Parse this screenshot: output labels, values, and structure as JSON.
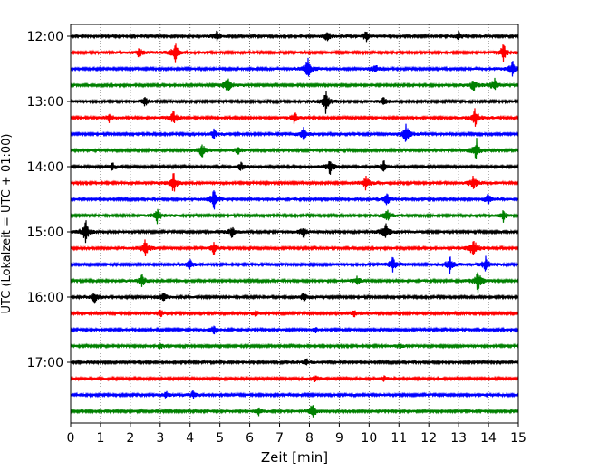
{
  "chart_data": {
    "type": "line",
    "title": "",
    "xlabel": "Zeit  [min]",
    "ylabel": "UTC (Lokalzeit = UTC + 01:00)",
    "xlim": [
      0,
      15
    ],
    "xticks": [
      0,
      1,
      2,
      3,
      4,
      5,
      6,
      7,
      8,
      9,
      10,
      11,
      12,
      13,
      14,
      15
    ],
    "yticks": [
      "12:00",
      "13:00",
      "14:00",
      "15:00",
      "16:00",
      "17:00"
    ],
    "grid": "vertical dotted",
    "trace_start": "12:00",
    "trace_interval_min": 15,
    "color_cycle": [
      "#000000",
      "#ff0000",
      "#0000ff",
      "#008000"
    ],
    "series": [
      {
        "start": "12:00",
        "color": "#000000",
        "events": [
          {
            "x": 4.9,
            "amp": 0.35
          },
          {
            "x": 8.6,
            "amp": 0.4
          },
          {
            "x": 9.9,
            "amp": 0.35
          },
          {
            "x": 13.0,
            "amp": 0.3
          }
        ]
      },
      {
        "start": "12:15",
        "color": "#ff0000",
        "events": [
          {
            "x": 2.3,
            "amp": 0.35
          },
          {
            "x": 3.5,
            "amp": 0.7
          },
          {
            "x": 14.5,
            "amp": 0.6
          }
        ]
      },
      {
        "start": "12:30",
        "color": "#0000ff",
        "events": [
          {
            "x": 7.95,
            "amp": 0.8
          },
          {
            "x": 10.2,
            "amp": 0.35
          },
          {
            "x": 14.8,
            "amp": 0.6
          }
        ]
      },
      {
        "start": "12:45",
        "color": "#008000",
        "events": [
          {
            "x": 5.25,
            "amp": 0.7
          },
          {
            "x": 13.5,
            "amp": 0.4
          },
          {
            "x": 14.2,
            "amp": 0.5
          }
        ]
      },
      {
        "start": "13:00",
        "color": "#000000",
        "events": [
          {
            "x": 2.5,
            "amp": 0.3
          },
          {
            "x": 8.55,
            "amp": 0.75
          },
          {
            "x": 10.5,
            "amp": 0.3
          }
        ]
      },
      {
        "start": "13:15",
        "color": "#ff0000",
        "events": [
          {
            "x": 1.3,
            "amp": 0.35
          },
          {
            "x": 3.45,
            "amp": 0.5
          },
          {
            "x": 7.5,
            "amp": 0.4
          },
          {
            "x": 13.55,
            "amp": 0.7
          }
        ]
      },
      {
        "start": "13:30",
        "color": "#0000ff",
        "events": [
          {
            "x": 4.8,
            "amp": 0.3
          },
          {
            "x": 7.8,
            "amp": 0.45
          },
          {
            "x": 11.25,
            "amp": 0.75
          }
        ]
      },
      {
        "start": "13:45",
        "color": "#008000",
        "events": [
          {
            "x": 4.4,
            "amp": 0.5
          },
          {
            "x": 5.6,
            "amp": 0.3
          },
          {
            "x": 13.6,
            "amp": 0.75
          }
        ]
      },
      {
        "start": "14:00",
        "color": "#000000",
        "events": [
          {
            "x": 1.4,
            "amp": 0.3
          },
          {
            "x": 5.7,
            "amp": 0.3
          },
          {
            "x": 8.7,
            "amp": 0.6
          },
          {
            "x": 10.5,
            "amp": 0.4
          }
        ]
      },
      {
        "start": "14:15",
        "color": "#ff0000",
        "events": [
          {
            "x": 3.45,
            "amp": 0.7
          },
          {
            "x": 9.9,
            "amp": 0.5
          },
          {
            "x": 13.5,
            "amp": 0.55
          }
        ]
      },
      {
        "start": "14:30",
        "color": "#0000ff",
        "events": [
          {
            "x": 4.8,
            "amp": 0.75
          },
          {
            "x": 10.6,
            "amp": 0.4
          },
          {
            "x": 14.0,
            "amp": 0.4
          }
        ]
      },
      {
        "start": "14:45",
        "color": "#008000",
        "events": [
          {
            "x": 2.9,
            "amp": 0.55
          },
          {
            "x": 10.6,
            "amp": 0.45
          },
          {
            "x": 14.5,
            "amp": 0.4
          }
        ]
      },
      {
        "start": "15:00",
        "color": "#000000",
        "events": [
          {
            "x": 0.5,
            "amp": 0.8
          },
          {
            "x": 5.4,
            "amp": 0.35
          },
          {
            "x": 7.8,
            "amp": 0.45
          },
          {
            "x": 10.55,
            "amp": 0.8
          }
        ]
      },
      {
        "start": "15:15",
        "color": "#ff0000",
        "events": [
          {
            "x": 2.5,
            "amp": 0.6
          },
          {
            "x": 4.8,
            "amp": 0.4
          },
          {
            "x": 13.5,
            "amp": 0.8
          }
        ]
      },
      {
        "start": "15:30",
        "color": "#0000ff",
        "events": [
          {
            "x": 4.0,
            "amp": 0.35
          },
          {
            "x": 10.8,
            "amp": 0.55
          },
          {
            "x": 12.7,
            "amp": 0.6
          },
          {
            "x": 13.9,
            "amp": 0.5
          }
        ]
      },
      {
        "start": "15:45",
        "color": "#008000",
        "events": [
          {
            "x": 2.4,
            "amp": 0.45
          },
          {
            "x": 9.6,
            "amp": 0.35
          },
          {
            "x": 13.65,
            "amp": 0.75
          }
        ]
      },
      {
        "start": "16:00",
        "color": "#000000",
        "events": [
          {
            "x": 0.8,
            "amp": 0.4
          },
          {
            "x": 3.1,
            "amp": 0.35
          },
          {
            "x": 7.8,
            "amp": 0.3
          }
        ]
      },
      {
        "start": "16:15",
        "color": "#ff0000",
        "events": [
          {
            "x": 3.0,
            "amp": 0.25
          },
          {
            "x": 6.2,
            "amp": 0.2
          },
          {
            "x": 9.5,
            "amp": 0.2
          }
        ]
      },
      {
        "start": "16:30",
        "color": "#0000ff",
        "events": [
          {
            "x": 4.8,
            "amp": 0.3
          },
          {
            "x": 8.2,
            "amp": 0.2
          }
        ]
      },
      {
        "start": "16:45",
        "color": "#008000",
        "events": [
          {
            "x": 3.0,
            "amp": 0.2
          },
          {
            "x": 11.0,
            "amp": 0.15
          }
        ]
      },
      {
        "start": "17:00",
        "color": "#000000",
        "events": [
          {
            "x": 7.9,
            "amp": 0.25
          }
        ]
      },
      {
        "start": "17:15",
        "color": "#ff0000",
        "events": [
          {
            "x": 8.2,
            "amp": 0.25
          },
          {
            "x": 10.5,
            "amp": 0.2
          }
        ]
      },
      {
        "start": "17:30",
        "color": "#0000ff",
        "events": [
          {
            "x": 3.2,
            "amp": 0.2
          },
          {
            "x": 4.1,
            "amp": 0.25
          }
        ]
      },
      {
        "start": "17:45",
        "color": "#008000",
        "events": [
          {
            "x": 6.3,
            "amp": 0.25
          },
          {
            "x": 8.1,
            "amp": 0.55
          }
        ]
      }
    ]
  }
}
